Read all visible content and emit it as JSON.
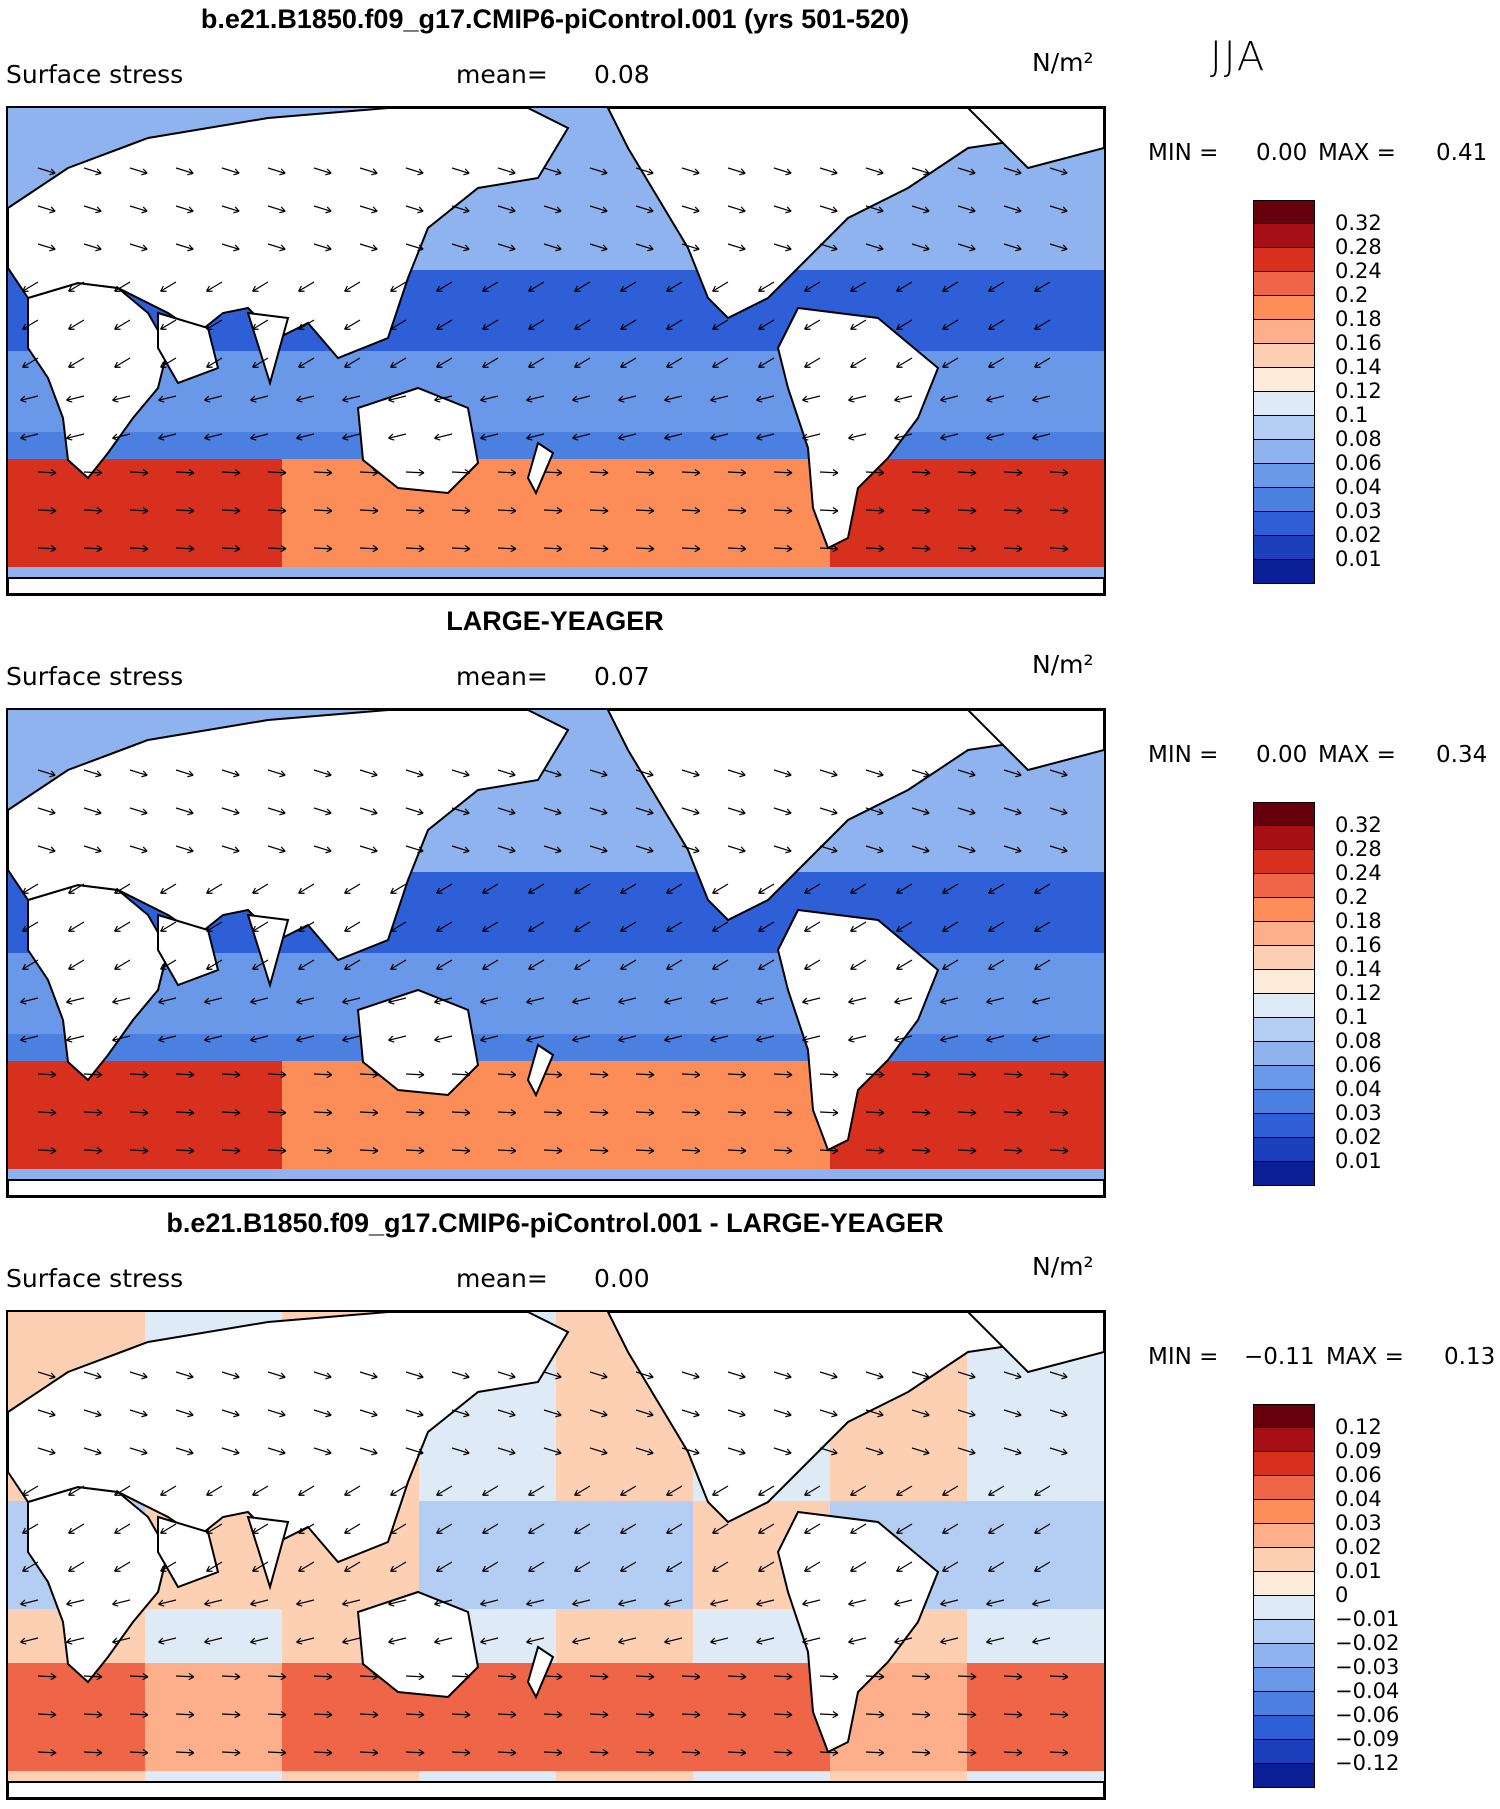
{
  "season": "JJA",
  "panels": [
    {
      "id": "model",
      "title": "b.e21.B1850.f09_g17.CMIP6-piControl.001 (yrs 501-520)",
      "field": "Surface stress",
      "mean_label": "mean=",
      "mean_value": "0.08",
      "units": "N/m²",
      "min_label": "MIN =",
      "min_value": "0.00",
      "max_label": "MAX =",
      "max_value": "0.41",
      "colorbar": {
        "colors": [
          "#67000d",
          "#a50f15",
          "#d7301f",
          "#ef6548",
          "#fc8d59",
          "#fdae8b",
          "#fdd0b4",
          "#fdebd9",
          "#deebf7",
          "#b3cdf3",
          "#8fb3ee",
          "#6a98e8",
          "#4b7fe0",
          "#2f5fd6",
          "#1b3fbd",
          "#0a1f96"
        ],
        "labels": [
          "0.32",
          "0.28",
          "0.24",
          "0.2",
          "0.18",
          "0.16",
          "0.14",
          "0.12",
          "0.1",
          "0.08",
          "0.06",
          "0.04",
          "0.03",
          "0.02",
          "0.01"
        ]
      }
    },
    {
      "id": "obs",
      "title": "LARGE-YEAGER",
      "field": "Surface stress",
      "mean_label": "mean=",
      "mean_value": "0.07",
      "units": "N/m²",
      "min_label": "MIN =",
      "min_value": "0.00",
      "max_label": "MAX =",
      "max_value": "0.34",
      "colorbar": {
        "colors": [
          "#67000d",
          "#a50f15",
          "#d7301f",
          "#ef6548",
          "#fc8d59",
          "#fdae8b",
          "#fdd0b4",
          "#fdebd9",
          "#deebf7",
          "#b3cdf3",
          "#8fb3ee",
          "#6a98e8",
          "#4b7fe0",
          "#2f5fd6",
          "#1b3fbd",
          "#0a1f96"
        ],
        "labels": [
          "0.32",
          "0.28",
          "0.24",
          "0.2",
          "0.18",
          "0.16",
          "0.14",
          "0.12",
          "0.1",
          "0.08",
          "0.06",
          "0.04",
          "0.03",
          "0.02",
          "0.01"
        ]
      }
    },
    {
      "id": "diff",
      "title": "b.e21.B1850.f09_g17.CMIP6-piControl.001 - LARGE-YEAGER",
      "field": "Surface stress",
      "mean_label": "mean=",
      "mean_value": "0.00",
      "units": "N/m²",
      "min_label": "MIN =",
      "min_value": "−0.11",
      "max_label": "MAX =",
      "max_value": "0.13",
      "colorbar": {
        "colors": [
          "#67000d",
          "#a50f15",
          "#d7301f",
          "#ef6548",
          "#fc8d59",
          "#fdae8b",
          "#fdd0b4",
          "#fdebd9",
          "#deebf7",
          "#b3cdf3",
          "#8fb3ee",
          "#6a98e8",
          "#4b7fe0",
          "#2f5fd6",
          "#1b3fbd",
          "#0a1f96"
        ],
        "labels": [
          "0.12",
          "0.09",
          "0.06",
          "0.04",
          "0.03",
          "0.02",
          "0.01",
          "0",
          "−0.01",
          "−0.02",
          "−0.03",
          "−0.04",
          "−0.06",
          "−0.09",
          "−0.12"
        ]
      }
    }
  ]
}
